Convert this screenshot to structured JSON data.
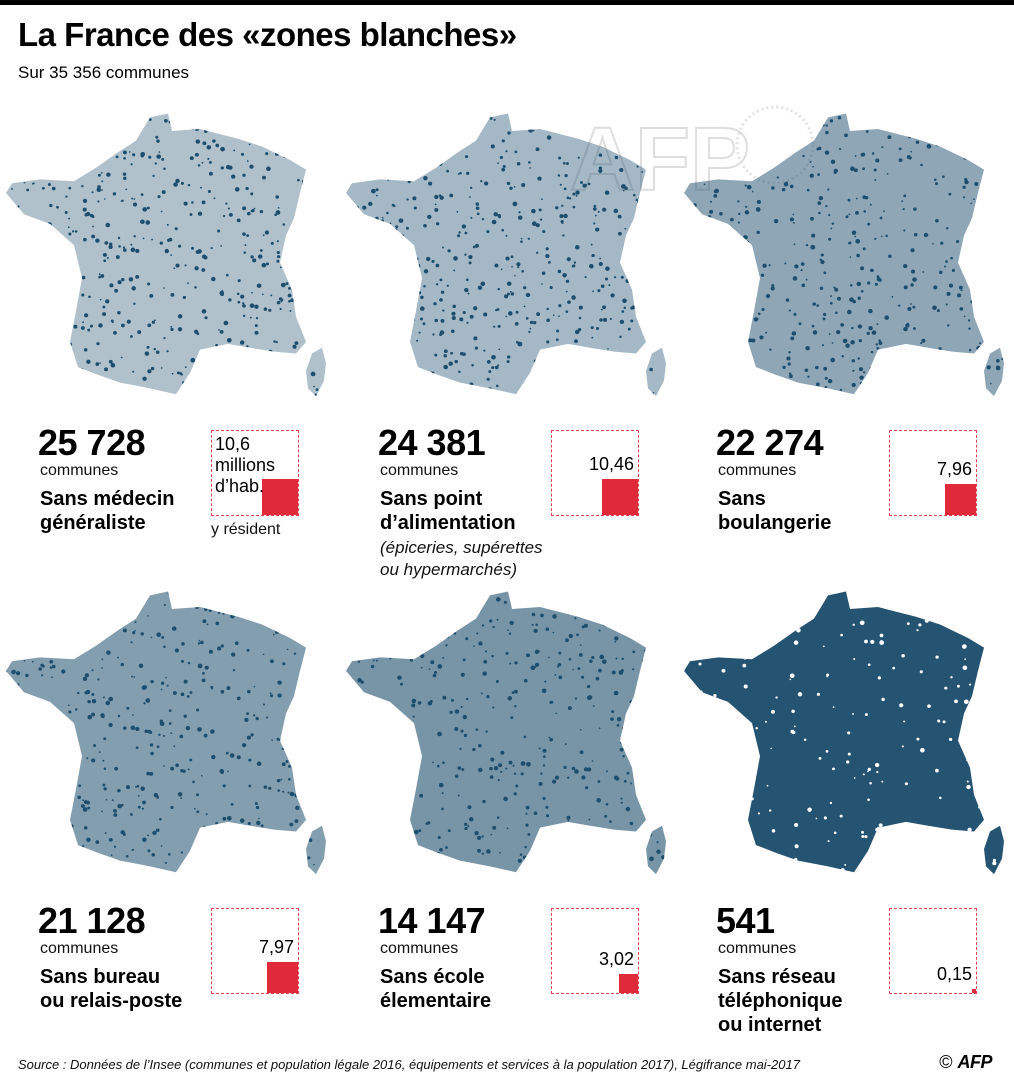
{
  "title": "La France des «zones blanches»",
  "subtitle": "Sur 35 356 communes",
  "colors": {
    "map_fill": "#1e4e6e",
    "population_square": "#e02a3a",
    "box_border": "#e2444f"
  },
  "chart_data": {
    "type": "table",
    "total_communes": 35356,
    "unit_label": "communes",
    "population_unit": "millions d'hab. y résident",
    "panels": [
      {
        "count": "25 728",
        "unit": "communes",
        "label_lines": [
          "Sans médecin",
          "généraliste"
        ],
        "note_lines": [],
        "population": "10,6",
        "population_value": 10.6,
        "population_extra": [
          "millions",
          "d’hab."
        ],
        "resident_note": "y résident",
        "coverage": 0.35
      },
      {
        "count": "24 381",
        "unit": "communes",
        "label_lines": [
          "Sans point",
          "d’alimentation"
        ],
        "note_lines": [
          "(épiceries, supérettes",
          "ou hypermarchés)"
        ],
        "population": "10,46",
        "population_value": 10.46,
        "population_extra": [],
        "resident_note": "",
        "coverage": 0.4
      },
      {
        "count": "22 274",
        "unit": "communes",
        "label_lines": [
          "Sans",
          "boulangerie"
        ],
        "note_lines": [],
        "population": "7,96",
        "population_value": 7.96,
        "population_extra": [],
        "resident_note": "",
        "coverage": 0.5
      },
      {
        "count": "21 128",
        "unit": "communes",
        "label_lines": [
          "Sans bureau",
          "ou relais-poste"
        ],
        "note_lines": [],
        "population": "7,97",
        "population_value": 7.97,
        "population_extra": [],
        "resident_note": "",
        "coverage": 0.55
      },
      {
        "count": "14 147",
        "unit": "communes",
        "label_lines": [
          "Sans école",
          "élementaire"
        ],
        "note_lines": [],
        "population": "3,02",
        "population_value": 3.02,
        "population_extra": [],
        "resident_note": "",
        "coverage": 0.6
      },
      {
        "count": "541",
        "unit": "communes",
        "label_lines": [
          "Sans réseau",
          "téléphonique",
          "ou internet"
        ],
        "note_lines": [],
        "population": "0,15",
        "population_value": 0.15,
        "population_extra": [],
        "resident_note": "",
        "coverage": 0.97
      }
    ],
    "population_scale_max": 10.6
  },
  "source": "Source : Données de l’Insee (communes et population légale 2016, équipements et services à la population 2017), Légifrance mai-2017",
  "credit": {
    "symbol": "©",
    "brand": "AFP"
  },
  "watermark": "AFP"
}
